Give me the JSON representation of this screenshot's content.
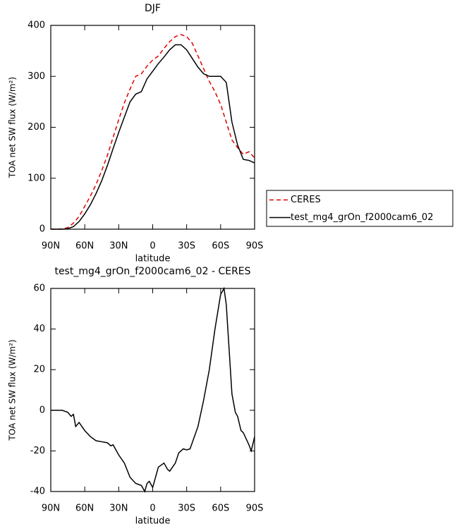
{
  "chart_data": [
    {
      "type": "line",
      "title": "DJF",
      "xlabel": "latitude",
      "ylabel": "TOA net SW flux (W/m²)",
      "x": [
        90,
        85,
        80,
        75,
        70,
        65,
        60,
        55,
        50,
        45,
        40,
        35,
        30,
        25,
        20,
        15,
        10,
        5,
        0,
        -5,
        -10,
        -15,
        -20,
        -25,
        -30,
        -35,
        -40,
        -45,
        -50,
        -55,
        -60,
        -65,
        -70,
        -75,
        -80,
        -85,
        -90
      ],
      "series": [
        {
          "name": "CERES",
          "color": "#e00000",
          "linestyle": "dashed",
          "values": [
            0,
            0,
            0.5,
            3,
            12,
            25,
            45,
            65,
            88,
            115,
            145,
            180,
            215,
            248,
            275,
            300,
            305,
            320,
            332,
            340,
            355,
            368,
            378,
            382,
            378,
            365,
            340,
            315,
            290,
            270,
            245,
            210,
            175,
            160,
            147,
            152,
            140
          ]
        },
        {
          "name": "test_mg4_grOn_f2000cam6_02",
          "color": "#000000",
          "linestyle": "solid",
          "values": [
            0,
            0,
            0,
            1,
            5,
            15,
            30,
            48,
            70,
            95,
            125,
            158,
            190,
            220,
            250,
            265,
            270,
            295,
            310,
            325,
            338,
            352,
            362,
            362,
            352,
            335,
            318,
            305,
            300,
            300,
            300,
            288,
            210,
            165,
            137,
            135,
            130
          ]
        }
      ],
      "xlim": [
        90,
        -90
      ],
      "xticks": [
        {
          "value": 90,
          "label": "90N"
        },
        {
          "value": 60,
          "label": "60N"
        },
        {
          "value": 30,
          "label": "30N"
        },
        0,
        {
          "value": -30,
          "label": "30S"
        },
        {
          "value": -60,
          "label": "60S"
        },
        {
          "value": -90,
          "label": "90S"
        }
      ],
      "ylim": [
        0,
        400
      ],
      "yticks": [
        0,
        100,
        200,
        300,
        400
      ],
      "legend": "right"
    },
    {
      "type": "line",
      "title": "test_mg4_grOn_f2000cam6_02 - CERES",
      "xlabel": "latitude",
      "ylabel": "TOA net SW flux (W/m²)",
      "x": [
        90,
        85,
        80,
        75,
        72,
        70,
        68,
        65,
        60,
        55,
        50,
        45,
        40,
        37,
        35,
        30,
        25,
        20,
        15,
        10,
        7,
        5,
        3,
        0,
        -3,
        -5,
        -10,
        -13,
        -15,
        -20,
        -23,
        -27,
        -30,
        -33,
        -40,
        -45,
        -50,
        -55,
        -60,
        -63,
        -65,
        -70,
        -73,
        -75,
        -78,
        -80,
        -85,
        -87,
        -90
      ],
      "series": [
        {
          "color": "#000000",
          "linestyle": "solid",
          "values": [
            0,
            0,
            0,
            -1,
            -3,
            -2,
            -8,
            -6,
            -10,
            -13,
            -15,
            -15.5,
            -16,
            -17.5,
            -17,
            -22,
            -26,
            -33,
            -36,
            -37,
            -40,
            -36,
            -35,
            -38,
            -32,
            -28,
            -26,
            -29,
            -30,
            -26,
            -21,
            -19,
            -19.5,
            -19,
            -8,
            5,
            20,
            40,
            57,
            60,
            52,
            8,
            -1,
            -3,
            -10,
            -11,
            -17,
            -20,
            -13
          ]
        }
      ],
      "xlim": [
        90,
        -90
      ],
      "xticks": [
        {
          "value": 90,
          "label": "90N"
        },
        {
          "value": 60,
          "label": "60N"
        },
        {
          "value": 30,
          "label": "30N"
        },
        0,
        {
          "value": -30,
          "label": "30S"
        },
        {
          "value": -60,
          "label": "60S"
        },
        {
          "value": -90,
          "label": "90S"
        }
      ],
      "ylim": [
        -40,
        60
      ],
      "yticks": [
        -40,
        -20,
        0,
        20,
        40,
        60
      ]
    }
  ]
}
